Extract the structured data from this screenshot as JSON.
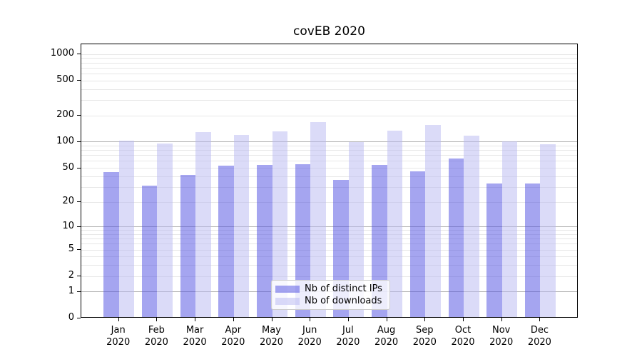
{
  "chart_data": {
    "type": "bar",
    "title": "covEB 2020",
    "categories": [
      "Jan",
      "Feb",
      "Mar",
      "Apr",
      "May",
      "Jun",
      "Jul",
      "Aug",
      "Sep",
      "Oct",
      "Nov",
      "Dec"
    ],
    "x_year_label": "2020",
    "series": [
      {
        "name": "Nb of distinct IPs",
        "color": "#4b4be1",
        "alpha": 0.5,
        "rendered_color": "#a5a5f0",
        "values": [
          43,
          30,
          40,
          51,
          52,
          53,
          35,
          52,
          44,
          62,
          32,
          32
        ]
      },
      {
        "name": "Nb of downloads",
        "color": "#b7b7f1",
        "alpha": 0.5,
        "rendered_color": "#dbdbf8",
        "values": [
          99,
          93,
          126,
          115,
          127,
          164,
          97,
          130,
          152,
          114,
          98,
          91
        ]
      }
    ],
    "yscale": "log10(v+1)",
    "yticks": [
      0,
      1,
      2,
      5,
      10,
      20,
      50,
      100,
      200,
      500,
      1000
    ],
    "ylim": [
      0,
      1300
    ],
    "grid": "both",
    "grid_major_values": [
      1,
      10,
      100
    ],
    "legend_position": "lower center",
    "colors": {
      "background": "#ffffff",
      "spine": "#000000",
      "grid_major": "#b2b2b2",
      "grid_minor": "#e7e7e7",
      "text": "#000000",
      "legend_border": "#cccccc"
    }
  }
}
